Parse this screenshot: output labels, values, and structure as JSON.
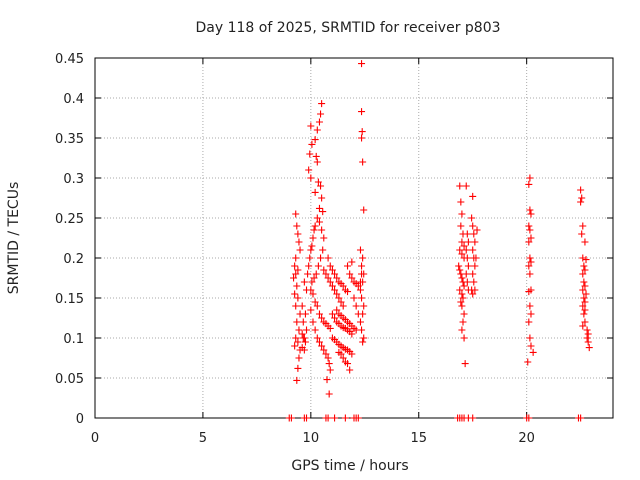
{
  "chart_data": {
    "type": "scatter",
    "title": "Day 118 of 2025, SRMTID for receiver p803",
    "xlabel": "GPS time / hours",
    "ylabel": "SRMTID / TECUs",
    "xlim": [
      0,
      24
    ],
    "ylim": [
      0,
      0.45
    ],
    "xticks": [
      0,
      5,
      10,
      15,
      20
    ],
    "xtick_labels": [
      "0",
      "5",
      "10",
      "15",
      "20"
    ],
    "yticks": [
      0,
      0.05,
      0.1,
      0.15,
      0.2,
      0.25,
      0.3,
      0.35,
      0.4,
      0.45
    ],
    "ytick_labels": [
      "0",
      "0.05",
      "0.1",
      "0.15",
      "0.2",
      "0.25",
      "0.3",
      "0.35",
      "0.4",
      "0.45"
    ],
    "grid": true,
    "marker": "+",
    "series_color": "#ff0000",
    "series": [
      {
        "name": "SRMTID p803",
        "points": [
          [
            9.0,
            0.0
          ],
          [
            9.1,
            0.0
          ],
          [
            9.7,
            0.0
          ],
          [
            9.8,
            0.0
          ],
          [
            10.7,
            0.0
          ],
          [
            10.8,
            0.0
          ],
          [
            11.1,
            0.0
          ],
          [
            11.6,
            0.0
          ],
          [
            12.0,
            0.0
          ],
          [
            12.1,
            0.0
          ],
          [
            12.2,
            0.0
          ],
          [
            16.8,
            0.0
          ],
          [
            16.9,
            0.0
          ],
          [
            17.0,
            0.0
          ],
          [
            17.1,
            0.0
          ],
          [
            17.3,
            0.0
          ],
          [
            17.5,
            0.0
          ],
          [
            20.0,
            0.0
          ],
          [
            20.1,
            0.0
          ],
          [
            22.4,
            0.0
          ],
          [
            22.5,
            0.0
          ],
          [
            12.35,
            0.443
          ],
          [
            12.35,
            0.383
          ],
          [
            12.38,
            0.358
          ],
          [
            12.35,
            0.35
          ],
          [
            12.4,
            0.32
          ],
          [
            12.45,
            0.26
          ],
          [
            10.5,
            0.393
          ],
          [
            10.45,
            0.38
          ],
          [
            10.4,
            0.37
          ],
          [
            10.3,
            0.36
          ],
          [
            10.2,
            0.348
          ],
          [
            10.0,
            0.365
          ],
          [
            10.05,
            0.342
          ],
          [
            9.95,
            0.33
          ],
          [
            9.9,
            0.31
          ],
          [
            10.25,
            0.327
          ],
          [
            10.3,
            0.32
          ],
          [
            10.0,
            0.3
          ],
          [
            10.35,
            0.295
          ],
          [
            10.45,
            0.29
          ],
          [
            10.2,
            0.282
          ],
          [
            10.5,
            0.275
          ],
          [
            10.4,
            0.262
          ],
          [
            10.55,
            0.258
          ],
          [
            9.3,
            0.255
          ],
          [
            9.35,
            0.24
          ],
          [
            9.4,
            0.23
          ],
          [
            9.45,
            0.22
          ],
          [
            9.5,
            0.21
          ],
          [
            9.3,
            0.2
          ],
          [
            9.25,
            0.19
          ],
          [
            9.4,
            0.185
          ],
          [
            9.3,
            0.18
          ],
          [
            9.2,
            0.175
          ],
          [
            9.35,
            0.165
          ],
          [
            9.25,
            0.155
          ],
          [
            9.4,
            0.15
          ],
          [
            9.3,
            0.14
          ],
          [
            9.5,
            0.13
          ],
          [
            9.35,
            0.12
          ],
          [
            9.45,
            0.11
          ],
          [
            9.3,
            0.1
          ],
          [
            9.4,
            0.095
          ],
          [
            9.25,
            0.09
          ],
          [
            9.5,
            0.085
          ],
          [
            9.45,
            0.075
          ],
          [
            9.4,
            0.062
          ],
          [
            9.35,
            0.047
          ],
          [
            9.6,
            0.105
          ],
          [
            9.65,
            0.1
          ],
          [
            9.7,
            0.1
          ],
          [
            9.75,
            0.095
          ],
          [
            9.6,
            0.088
          ],
          [
            9.7,
            0.085
          ],
          [
            9.8,
            0.11
          ],
          [
            9.65,
            0.12
          ],
          [
            9.75,
            0.13
          ],
          [
            9.6,
            0.14
          ],
          [
            9.8,
            0.16
          ],
          [
            9.7,
            0.17
          ],
          [
            9.85,
            0.18
          ],
          [
            9.9,
            0.19
          ],
          [
            9.95,
            0.2
          ],
          [
            10.0,
            0.21
          ],
          [
            10.05,
            0.215
          ],
          [
            10.1,
            0.225
          ],
          [
            10.15,
            0.235
          ],
          [
            10.2,
            0.24
          ],
          [
            10.3,
            0.25
          ],
          [
            10.4,
            0.245
          ],
          [
            10.5,
            0.235
          ],
          [
            10.6,
            0.225
          ],
          [
            10.55,
            0.21
          ],
          [
            10.45,
            0.2
          ],
          [
            10.35,
            0.19
          ],
          [
            10.25,
            0.18
          ],
          [
            10.15,
            0.175
          ],
          [
            10.05,
            0.17
          ],
          [
            10.0,
            0.16
          ],
          [
            10.1,
            0.155
          ],
          [
            10.2,
            0.145
          ],
          [
            10.3,
            0.14
          ],
          [
            10.4,
            0.13
          ],
          [
            10.5,
            0.125
          ],
          [
            10.6,
            0.12
          ],
          [
            10.7,
            0.118
          ],
          [
            10.8,
            0.115
          ],
          [
            10.9,
            0.112
          ],
          [
            10.0,
            0.135
          ],
          [
            10.1,
            0.12
          ],
          [
            10.2,
            0.11
          ],
          [
            10.3,
            0.1
          ],
          [
            10.4,
            0.095
          ],
          [
            10.5,
            0.09
          ],
          [
            10.6,
            0.085
          ],
          [
            10.7,
            0.08
          ],
          [
            10.8,
            0.075
          ],
          [
            10.85,
            0.068
          ],
          [
            10.9,
            0.06
          ],
          [
            10.75,
            0.048
          ],
          [
            10.85,
            0.03
          ],
          [
            10.6,
            0.185
          ],
          [
            10.7,
            0.18
          ],
          [
            10.8,
            0.175
          ],
          [
            10.9,
            0.17
          ],
          [
            11.0,
            0.165
          ],
          [
            11.1,
            0.16
          ],
          [
            11.2,
            0.155
          ],
          [
            11.3,
            0.15
          ],
          [
            11.4,
            0.145
          ],
          [
            11.5,
            0.14
          ],
          [
            10.8,
            0.2
          ],
          [
            10.9,
            0.19
          ],
          [
            11.0,
            0.185
          ],
          [
            11.1,
            0.18
          ],
          [
            11.2,
            0.175
          ],
          [
            11.3,
            0.17
          ],
          [
            11.4,
            0.168
          ],
          [
            11.5,
            0.165
          ],
          [
            11.6,
            0.16
          ],
          [
            11.7,
            0.158
          ],
          [
            11.0,
            0.13
          ],
          [
            11.1,
            0.125
          ],
          [
            11.2,
            0.12
          ],
          [
            11.3,
            0.118
          ],
          [
            11.4,
            0.115
          ],
          [
            11.5,
            0.113
          ],
          [
            11.6,
            0.112
          ],
          [
            11.7,
            0.11
          ],
          [
            11.8,
            0.108
          ],
          [
            11.9,
            0.105
          ],
          [
            11.0,
            0.1
          ],
          [
            11.1,
            0.098
          ],
          [
            11.2,
            0.095
          ],
          [
            11.3,
            0.092
          ],
          [
            11.4,
            0.09
          ],
          [
            11.5,
            0.088
          ],
          [
            11.6,
            0.086
          ],
          [
            11.7,
            0.085
          ],
          [
            11.8,
            0.083
          ],
          [
            11.9,
            0.08
          ],
          [
            11.2,
            0.135
          ],
          [
            11.3,
            0.13
          ],
          [
            11.4,
            0.128
          ],
          [
            11.5,
            0.125
          ],
          [
            11.6,
            0.123
          ],
          [
            11.7,
            0.12
          ],
          [
            11.8,
            0.118
          ],
          [
            11.9,
            0.115
          ],
          [
            12.0,
            0.112
          ],
          [
            12.1,
            0.11
          ],
          [
            11.5,
            0.075
          ],
          [
            11.6,
            0.07
          ],
          [
            11.7,
            0.068
          ],
          [
            11.8,
            0.06
          ],
          [
            11.4,
            0.08
          ],
          [
            11.3,
            0.082
          ],
          [
            11.8,
            0.18
          ],
          [
            11.9,
            0.175
          ],
          [
            12.0,
            0.17
          ],
          [
            12.1,
            0.168
          ],
          [
            12.2,
            0.165
          ],
          [
            11.7,
            0.19
          ],
          [
            11.9,
            0.195
          ],
          [
            12.0,
            0.15
          ],
          [
            12.1,
            0.14
          ],
          [
            12.2,
            0.13
          ],
          [
            12.3,
            0.21
          ],
          [
            12.4,
            0.2
          ],
          [
            12.35,
            0.19
          ],
          [
            12.45,
            0.18
          ],
          [
            12.4,
            0.17
          ],
          [
            12.3,
            0.16
          ],
          [
            12.35,
            0.15
          ],
          [
            12.45,
            0.14
          ],
          [
            12.4,
            0.13
          ],
          [
            12.3,
            0.12
          ],
          [
            12.35,
            0.11
          ],
          [
            12.45,
            0.1
          ],
          [
            12.4,
            0.095
          ],
          [
            12.3,
            0.17
          ],
          [
            12.35,
            0.18
          ],
          [
            16.9,
            0.29
          ],
          [
            16.95,
            0.27
          ],
          [
            17.0,
            0.255
          ],
          [
            16.95,
            0.24
          ],
          [
            17.05,
            0.23
          ],
          [
            17.0,
            0.22
          ],
          [
            17.1,
            0.215
          ],
          [
            16.9,
            0.21
          ],
          [
            17.0,
            0.205
          ],
          [
            17.1,
            0.2
          ],
          [
            16.85,
            0.19
          ],
          [
            16.9,
            0.185
          ],
          [
            16.95,
            0.18
          ],
          [
            17.0,
            0.175
          ],
          [
            17.05,
            0.17
          ],
          [
            17.1,
            0.165
          ],
          [
            16.9,
            0.16
          ],
          [
            17.0,
            0.155
          ],
          [
            17.05,
            0.15
          ],
          [
            16.95,
            0.145
          ],
          [
            17.0,
            0.14
          ],
          [
            17.1,
            0.13
          ],
          [
            17.05,
            0.12
          ],
          [
            17.0,
            0.11
          ],
          [
            17.1,
            0.1
          ],
          [
            17.15,
            0.068
          ],
          [
            17.2,
            0.29
          ],
          [
            17.25,
            0.23
          ],
          [
            17.3,
            0.22
          ],
          [
            17.2,
            0.21
          ],
          [
            17.25,
            0.2
          ],
          [
            17.3,
            0.19
          ],
          [
            17.2,
            0.18
          ],
          [
            17.25,
            0.17
          ],
          [
            17.3,
            0.16
          ],
          [
            17.5,
            0.277
          ],
          [
            17.45,
            0.25
          ],
          [
            17.5,
            0.24
          ],
          [
            17.55,
            0.23
          ],
          [
            17.6,
            0.22
          ],
          [
            17.5,
            0.21
          ],
          [
            17.55,
            0.2
          ],
          [
            17.6,
            0.19
          ],
          [
            17.5,
            0.18
          ],
          [
            17.55,
            0.17
          ],
          [
            17.6,
            0.16
          ],
          [
            17.5,
            0.155
          ],
          [
            17.45,
            0.16
          ],
          [
            17.7,
            0.235
          ],
          [
            17.65,
            0.2
          ],
          [
            20.15,
            0.3
          ],
          [
            20.1,
            0.292
          ],
          [
            20.15,
            0.26
          ],
          [
            20.2,
            0.255
          ],
          [
            20.1,
            0.24
          ],
          [
            20.15,
            0.235
          ],
          [
            20.2,
            0.225
          ],
          [
            20.1,
            0.22
          ],
          [
            20.15,
            0.2
          ],
          [
            20.2,
            0.195
          ],
          [
            20.1,
            0.19
          ],
          [
            20.15,
            0.18
          ],
          [
            20.2,
            0.16
          ],
          [
            20.1,
            0.158
          ],
          [
            20.15,
            0.14
          ],
          [
            20.2,
            0.13
          ],
          [
            20.1,
            0.12
          ],
          [
            20.15,
            0.1
          ],
          [
            20.2,
            0.09
          ],
          [
            20.3,
            0.082
          ],
          [
            20.05,
            0.07
          ],
          [
            22.5,
            0.285
          ],
          [
            22.55,
            0.275
          ],
          [
            22.5,
            0.27
          ],
          [
            22.6,
            0.24
          ],
          [
            22.55,
            0.23
          ],
          [
            22.7,
            0.22
          ],
          [
            22.6,
            0.2
          ],
          [
            22.75,
            0.198
          ],
          [
            22.65,
            0.19
          ],
          [
            22.7,
            0.185
          ],
          [
            22.6,
            0.18
          ],
          [
            22.65,
            0.17
          ],
          [
            22.7,
            0.165
          ],
          [
            22.6,
            0.16
          ],
          [
            22.75,
            0.155
          ],
          [
            22.65,
            0.15
          ],
          [
            22.7,
            0.145
          ],
          [
            22.6,
            0.14
          ],
          [
            22.65,
            0.13
          ],
          [
            22.7,
            0.12
          ],
          [
            22.6,
            0.115
          ],
          [
            22.8,
            0.11
          ],
          [
            22.85,
            0.105
          ],
          [
            22.8,
            0.1
          ],
          [
            22.85,
            0.095
          ],
          [
            22.9,
            0.088
          ],
          [
            22.7,
            0.135
          ]
        ]
      }
    ]
  }
}
